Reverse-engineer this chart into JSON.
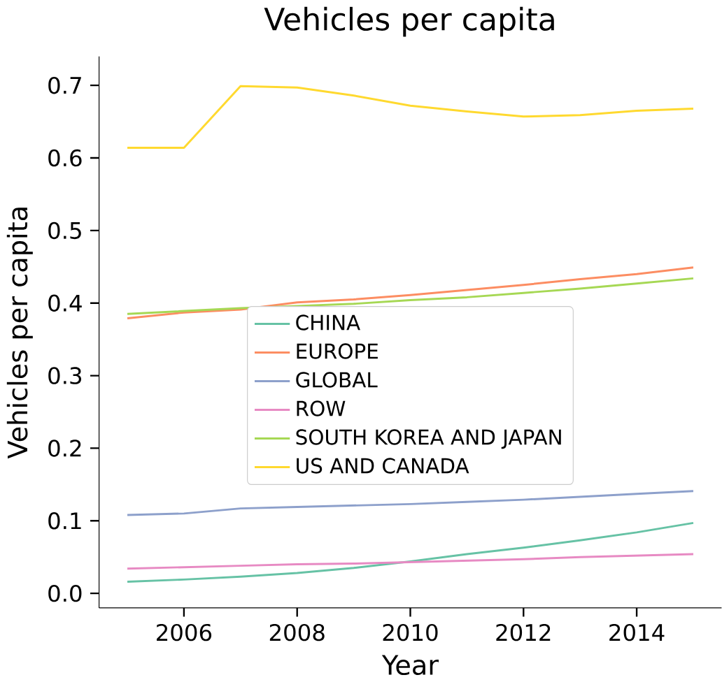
{
  "chart_data": {
    "type": "line",
    "title": "Vehicles per capita",
    "xlabel": "Year",
    "ylabel": "Vehicles per capita",
    "x": [
      2005,
      2006,
      2007,
      2008,
      2009,
      2010,
      2011,
      2012,
      2013,
      2014,
      2015
    ],
    "xlim": [
      2004.5,
      2015.5
    ],
    "ylim": [
      -0.02,
      0.74
    ],
    "xticks": [
      2006,
      2008,
      2010,
      2012,
      2014
    ],
    "yticks": [
      {
        "value": 0,
        "label": "0.0"
      },
      0.1,
      0.2,
      0.3,
      0.4,
      0.5,
      0.6,
      0.7
    ],
    "legend": "center",
    "grid": false,
    "series": [
      {
        "name": "CHINA",
        "color": "#66c2a5",
        "values": [
          0.016,
          0.019,
          0.023,
          0.028,
          0.035,
          0.044,
          0.054,
          0.063,
          0.073,
          0.084,
          0.097
        ]
      },
      {
        "name": "EUROPE",
        "color": "#fc8d62",
        "values": [
          0.379,
          0.387,
          0.391,
          0.401,
          0.405,
          0.411,
          0.418,
          0.425,
          0.433,
          0.44,
          0.449
        ]
      },
      {
        "name": "GLOBAL",
        "color": "#8da0cb",
        "values": [
          0.108,
          0.11,
          0.117,
          0.119,
          0.121,
          0.123,
          0.126,
          0.129,
          0.133,
          0.137,
          0.141
        ]
      },
      {
        "name": "ROW",
        "color": "#e78ac3",
        "values": [
          0.034,
          0.036,
          0.038,
          0.04,
          0.041,
          0.043,
          0.045,
          0.047,
          0.05,
          0.052,
          0.054
        ]
      },
      {
        "name": "SOUTH KOREA AND JAPAN",
        "color": "#a6d854",
        "values": [
          0.385,
          0.389,
          0.393,
          0.396,
          0.399,
          0.404,
          0.408,
          0.414,
          0.42,
          0.427,
          0.434
        ]
      },
      {
        "name": "US AND CANADA",
        "color": "#ffd92f",
        "values": [
          0.614,
          0.614,
          0.699,
          0.697,
          0.686,
          0.672,
          0.664,
          0.657,
          0.659,
          0.665,
          0.668
        ]
      }
    ]
  }
}
